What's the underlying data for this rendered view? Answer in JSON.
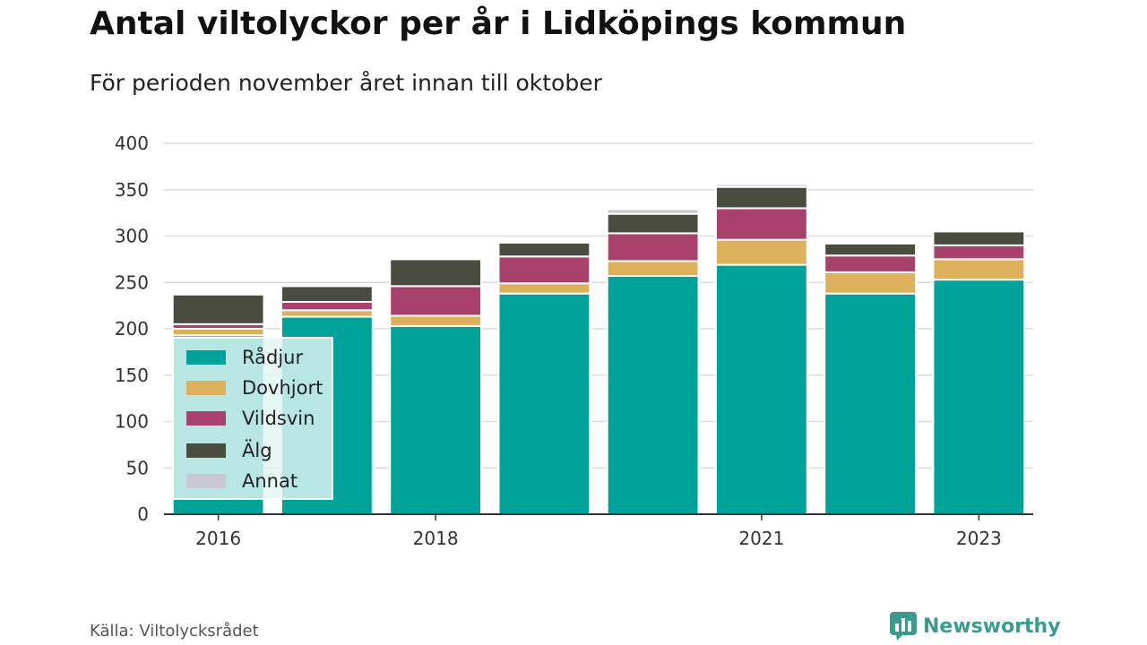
{
  "title": "Antal viltolyckor per år i Lidköpings kommun",
  "subtitle": "För perioden november året innan till oktober",
  "source": "Källa: Viltolycksrådet",
  "brand": "Newsworthy",
  "chart_data": {
    "type": "bar",
    "stacked": true,
    "categories": [
      "2016",
      "2017",
      "2018",
      "2019",
      "2020",
      "2021",
      "2022",
      "2023"
    ],
    "x_tick_labels": [
      "2016",
      "",
      "2018",
      "",
      "",
      "2021",
      "",
      "2023"
    ],
    "series": [
      {
        "name": "Rådjur",
        "color": "#00a39a",
        "values": [
          193,
          213,
          203,
          238,
          257,
          269,
          238,
          253
        ]
      },
      {
        "name": "Dovhjort",
        "color": "#ddb05c",
        "values": [
          7,
          7,
          11,
          11,
          16,
          27,
          23,
          22
        ]
      },
      {
        "name": "Vildsvin",
        "color": "#a8416b",
        "values": [
          5,
          9,
          32,
          29,
          30,
          34,
          18,
          15
        ]
      },
      {
        "name": "Älg",
        "color": "#494c3e",
        "values": [
          32,
          17,
          29,
          15,
          21,
          23,
          13,
          15
        ]
      },
      {
        "name": "Annat",
        "color": "#c9c9d1",
        "values": [
          1,
          1,
          1,
          1,
          5,
          3,
          1,
          1
        ]
      }
    ],
    "ylim": [
      0,
      400
    ],
    "yticks": [
      0,
      50,
      100,
      150,
      200,
      250,
      300,
      350,
      400
    ],
    "grid": true,
    "legend_position": "bottom-left"
  }
}
